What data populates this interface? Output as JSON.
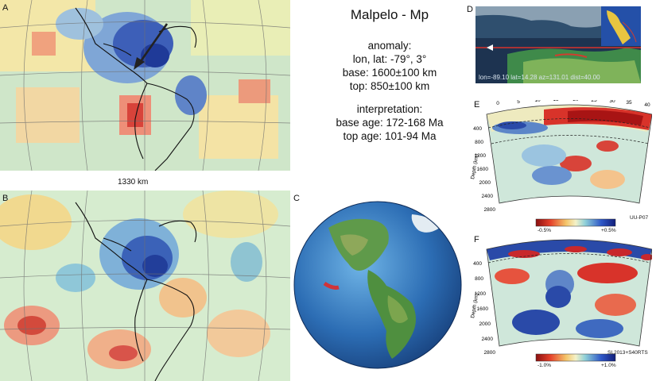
{
  "panels": {
    "a": "A",
    "b": "B",
    "c": "C",
    "d": "D",
    "e": "E",
    "f": "F"
  },
  "scale_bar": "1330 km",
  "info": {
    "title": "Malpelo - Mp",
    "anomaly_heading": "anomaly:",
    "lonlat": "lon, lat: -79°, 3°",
    "base": "base: 1600±100 km",
    "top": "top: 850±100 km",
    "interp_heading": "interpretation:",
    "base_age": "base age: 172-168 Ma",
    "top_age": "top age: 101-94 Ma"
  },
  "inset": {
    "readout": "lon=-89.10 lat=14.28 az=131.01 dist=40.00"
  },
  "section_e": {
    "top_ticks": [
      "0",
      "5",
      "10",
      "15",
      "20",
      "25",
      "30",
      "35",
      "40"
    ],
    "depth_ticks": [
      "400",
      "800",
      "1200",
      "1600",
      "2000",
      "2400",
      "2800"
    ],
    "axis_label": "Depth (km)",
    "cbar_min": "-0.5%",
    "cbar_max": "+0.5%",
    "model": "UU-P07"
  },
  "section_f": {
    "depth_ticks": [
      "400",
      "800",
      "1200",
      "1600",
      "2000",
      "2400",
      "2800"
    ],
    "axis_label": "Depth (km)",
    "cbar_min": "-1.0%",
    "cbar_max": "+1.0%",
    "model": "SL2013+S40RTS"
  },
  "colors": {
    "fast": "#1f3fa8",
    "slow": "#c8202a",
    "neutral": "#eee7b4",
    "ocean": "#2f6fb0",
    "land": "#4f8f3f"
  }
}
